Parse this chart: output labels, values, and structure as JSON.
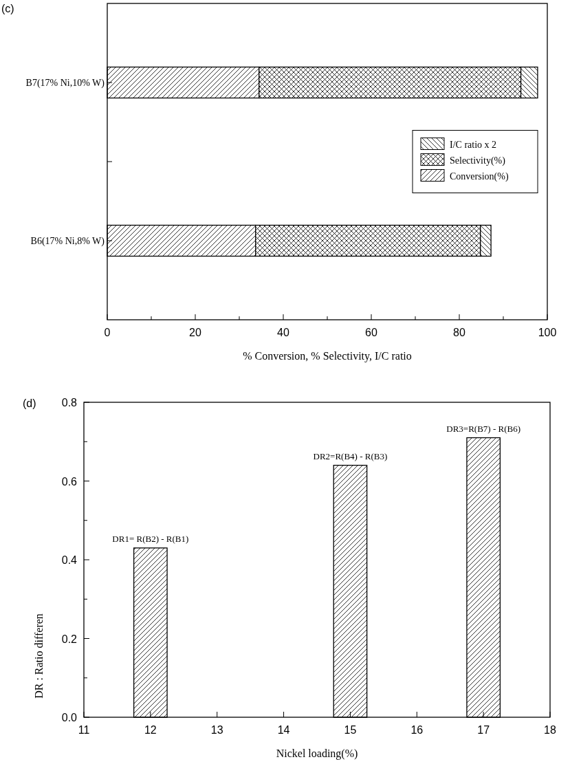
{
  "chart_data": [
    {
      "type": "bar",
      "title": "(c)",
      "orientation": "horizontal",
      "stacked": true,
      "legend": "right",
      "xlabel": "% Conversion, % Selectivity, I/C ratio",
      "categories": [
        "B7(17% Ni,10% W)",
        "B6(17% Ni,8% W)"
      ],
      "xlim": [
        0,
        100
      ],
      "xticks": [
        0,
        {
          "value": 10,
          "label": null
        },
        20,
        {
          "value": 30,
          "label": null
        },
        40,
        {
          "value": 50,
          "label": null
        },
        60,
        {
          "value": 70,
          "label": null
        },
        80,
        {
          "value": 90,
          "label": null
        },
        100
      ],
      "series": [
        {
          "name": "Conversion(%)",
          "color": "#000000",
          "values": [
            34.5,
            33.7
          ]
        },
        {
          "name": "Selectivity(%)",
          "color": "#000000",
          "values": [
            59.5,
            51.1
          ]
        },
        {
          "name": "I/C ratio x 2",
          "color": "#000000",
          "values": [
            3.8,
            2.4
          ]
        }
      ]
    },
    {
      "type": "bar",
      "title": "(d)",
      "xlabel": "Nickel loading(%)",
      "ylabel": "DR : Ratio differen",
      "x": [
        12,
        15,
        17
      ],
      "xlim": [
        11,
        18
      ],
      "xticks": [
        11,
        12,
        13,
        14,
        15,
        16,
        17,
        18
      ],
      "ylim": [
        0,
        0.8
      ],
      "yticks": [
        {
          "value": 0,
          "label": "0.0"
        },
        {
          "value": 0.1,
          "label": null
        },
        0.2,
        {
          "value": 0.3,
          "label": null
        },
        0.4,
        {
          "value": 0.5,
          "label": null
        },
        0.6,
        {
          "value": 0.7,
          "label": null
        },
        0.8
      ],
      "series": [
        {
          "color": "#000000",
          "values": [
            0.43,
            0.64,
            0.71
          ]
        }
      ],
      "annotations": [
        {
          "text": "DR1= R(B2) - R(B1)",
          "x": 12,
          "y": 0.43
        },
        {
          "text": "DR2=R(B4) - R(B3)",
          "x": 15,
          "y": 0.64
        },
        {
          "text": "DR3=R(B7) - R(B6)",
          "x": 17,
          "y": 0.71
        }
      ]
    }
  ]
}
